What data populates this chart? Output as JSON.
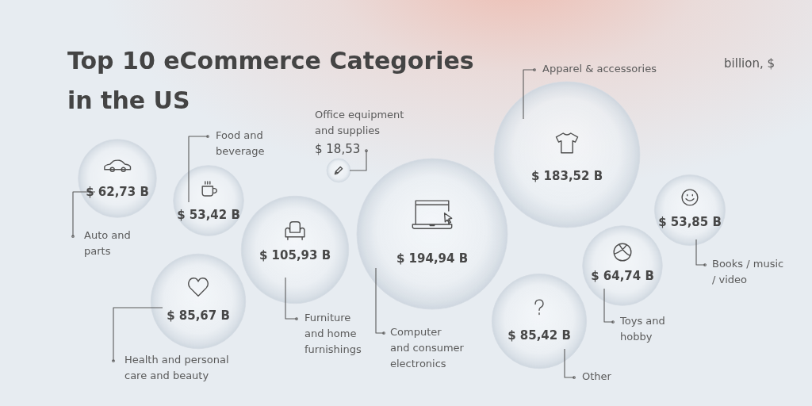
{
  "chart_data": {
    "type": "other",
    "title": "Top 10 eCommerce Categories in the US",
    "annotations": [
      "billion, $"
    ],
    "categories": [
      "Auto and parts",
      "Food and beverage",
      "Office equipment and supplies",
      "Furniture and home furnishings",
      "Computer and consumer electronics",
      "Apparel & accessories",
      "Books / music / video",
      "Toys and hobby",
      "Other",
      "Health and personal care and beauty"
    ],
    "values": [
      62.73,
      53.42,
      18.53,
      105.93,
      194.94,
      183.52,
      53.85,
      64.74,
      85.42,
      85.67
    ],
    "value_labels": [
      "$ 62,73 B",
      "$ 53,42 B",
      "$ 18,53",
      "$ 105,93 B",
      "$ 194,94 B",
      "$ 183,52 B",
      "$ 53,85 B",
      "$ 64,74 B",
      "$ 85,42 B",
      "$ 85,67 B"
    ]
  }
}
